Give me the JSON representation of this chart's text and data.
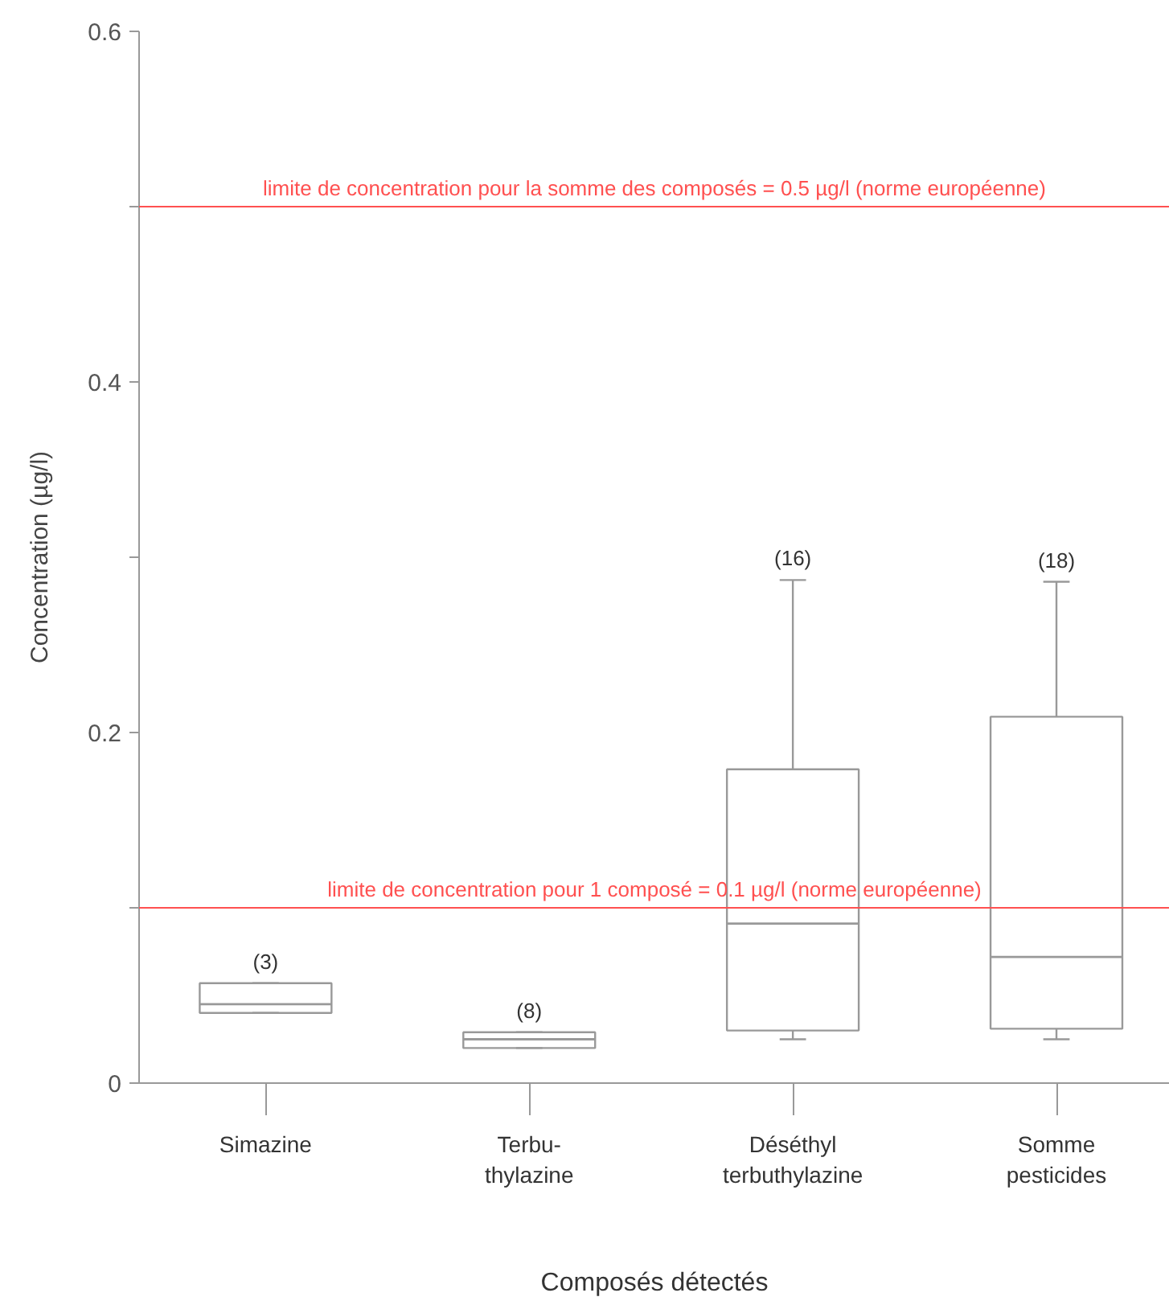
{
  "chart_data": {
    "type": "box",
    "xlabel": "Composés détectés",
    "ylabel": "Concentration (µg/l)",
    "categories": [
      "Simazine",
      "Terbu-\nthylazine",
      "Déséthyl\nterbuthylazine",
      "Somme\npesticides"
    ],
    "series": [
      {
        "color": "#999999",
        "boxes": [
          {
            "low": 0.04,
            "q1": 0.04,
            "median": 0.045,
            "q3": 0.057,
            "high": 0.057
          },
          {
            "low": 0.02,
            "q1": 0.02,
            "median": 0.025,
            "q3": 0.029,
            "high": 0.029
          },
          {
            "low": 0.025,
            "q1": 0.03,
            "median": 0.091,
            "q3": 0.179,
            "high": 0.287
          },
          {
            "low": 0.025,
            "q1": 0.031,
            "median": 0.072,
            "q3": 0.209,
            "high": 0.286
          }
        ]
      }
    ],
    "ylim": [
      0,
      0.6
    ],
    "yticks": [
      0,
      {
        "value": 0.1,
        "label": null
      },
      0.2,
      {
        "value": 0.3,
        "label": null
      },
      0.4,
      {
        "value": 0.5,
        "label": null
      },
      0.6
    ],
    "ref_lines": [
      {
        "axis": "y",
        "value": 0.5,
        "label": "limite de concentration pour la somme des composés = 0.5 µg/l (norme européenne)",
        "color": "#ff5050"
      },
      {
        "axis": "y",
        "value": 0.1,
        "label": "limite de concentration pour 1 composé = 0.1 µg/l (norme européenne)",
        "color": "#ff5050"
      }
    ],
    "annotations": [
      {
        "text": "(3)",
        "x": "Simazine",
        "y": 0.057
      },
      {
        "text": "(8)",
        "x": "Terbu-\nthylazine",
        "y": 0.029
      },
      {
        "text": "(16)",
        "x": "Déséthyl\nterbuthylazine",
        "y": 0.287
      },
      {
        "text": "(18)",
        "x": "Somme\npesticides",
        "y": 0.286
      }
    ],
    "grid": false
  }
}
